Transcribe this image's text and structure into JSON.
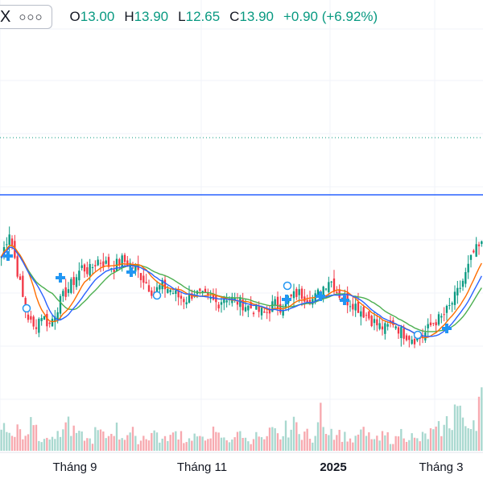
{
  "legend": {
    "symbol": "X",
    "more_icon": "more-horizontal-icon",
    "open_label": "O",
    "open": "13.00",
    "high_label": "H",
    "high": "13.90",
    "low_label": "L",
    "low": "12.65",
    "close_label": "C",
    "close": "13.90",
    "change": "+0.90 (+6.92%)"
  },
  "colors": {
    "up": "#089981",
    "down": "#f23645",
    "ma_green": "#4caf50",
    "ma_orange": "#ff6d00",
    "ma_blue": "#2962ff",
    "marker_blue": "#2196f3",
    "hline_solid": "#2962ff",
    "hline_dotted": "#089981",
    "volume_up": "#a8d8cf",
    "volume_down": "#f7a9af",
    "grid": "#f0f3fa",
    "axis_text": "#131722"
  },
  "chart_data": {
    "type": "candlestick",
    "x_axis_labels": [
      "Tháng 9",
      "Tháng 11",
      "2025",
      "Tháng 3"
    ],
    "ohlc_close_series": [
      13.6,
      14.3,
      13.2,
      12.1,
      11.6,
      12.0,
      11.7,
      12.2,
      12.6,
      12.9,
      13.3,
      13.2,
      13.5,
      13.4,
      13.3,
      13.5,
      13.4,
      13.2,
      12.9,
      12.6,
      12.8,
      12.7,
      12.5,
      12.4,
      12.6,
      12.5,
      12.4,
      12.3,
      12.5,
      12.4,
      12.3,
      12.2,
      12.1,
      12.0,
      12.3,
      12.2,
      12.4,
      12.6,
      12.5,
      12.4,
      12.7,
      13.0,
      12.6,
      12.4,
      12.3,
      12.1,
      11.9,
      11.7,
      11.6,
      11.8,
      11.5,
      11.4,
      11.3,
      11.5,
      11.8,
      11.9,
      12.2,
      12.6,
      13.1,
      13.7,
      13.9
    ],
    "volume_series": [
      7,
      5,
      6,
      4,
      9,
      3,
      5,
      4,
      8,
      5,
      4,
      3,
      5,
      4,
      6,
      4,
      5,
      3,
      4,
      5,
      3,
      4,
      5,
      3,
      4,
      3,
      5,
      4,
      3,
      4,
      5,
      3,
      4,
      3,
      5,
      4,
      6,
      7,
      5,
      3,
      10,
      6,
      5,
      4,
      3,
      5,
      4,
      3,
      4,
      3,
      5,
      4,
      3,
      4,
      5,
      6,
      8,
      12,
      7,
      9,
      14
    ],
    "moving_averages": [
      "green",
      "orange",
      "blue"
    ],
    "horizontal_lines": [
      "solid-blue",
      "dotted-green"
    ],
    "grid": true
  }
}
